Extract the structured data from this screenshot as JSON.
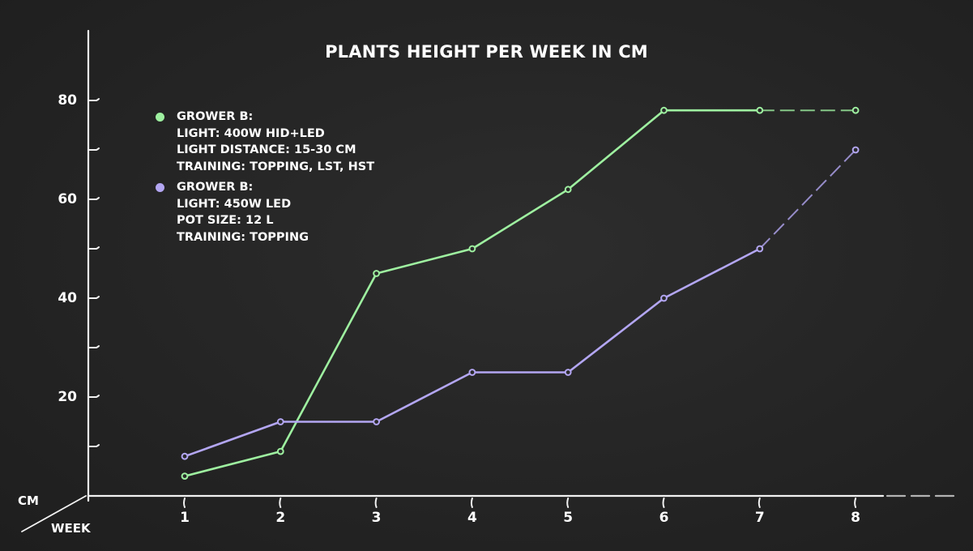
{
  "title": "PLANTS HEIGHT PER WEEK IN CM",
  "axes": {
    "y_name": "CM",
    "x_name": "WEEK",
    "y_ticks": [
      "80",
      "60",
      "40",
      "20"
    ],
    "x_ticks": [
      "1",
      "2",
      "3",
      "4",
      "5",
      "6",
      "7",
      "8"
    ]
  },
  "legend": [
    {
      "color": "#9ef0a0",
      "lines": [
        "GROWER B:",
        "LIGHT: 400W HID+LED",
        "LIGHT DISTANCE: 15-30 CM",
        "TRAINING: TOPPING, LST, HST"
      ]
    },
    {
      "color": "#b3a6f2",
      "lines": [
        "GROWER B:",
        "LIGHT: 450W LED",
        "POT SIZE: 12 L",
        "TRAINING: TOPPING"
      ]
    }
  ],
  "chart_data": {
    "type": "line",
    "title": "PLANTS HEIGHT PER WEEK IN CM",
    "xlabel": "WEEK",
    "ylabel": "CM",
    "x": [
      1,
      2,
      3,
      4,
      5,
      6,
      7,
      8
    ],
    "ylim": [
      0,
      80
    ],
    "y_ticks": [
      20,
      40,
      60,
      80
    ],
    "y_minor_ticks": [
      10,
      30,
      50,
      70
    ],
    "grid": false,
    "legend_position": "upper left",
    "series": [
      {
        "name": "GROWER B: LIGHT: 400W HID+LED, LIGHT DISTANCE: 15-30 CM, TRAINING: TOPPING, LST, HST",
        "color": "#9ef0a0",
        "values": [
          4,
          9,
          45,
          50,
          62,
          78,
          78,
          78
        ],
        "dashed_from_index": 6
      },
      {
        "name": "GROWER B: LIGHT: 450W LED, POT SIZE: 12 L, TRAINING: TOPPING",
        "color": "#b3a6f2",
        "values": [
          8,
          15,
          15,
          25,
          25,
          40,
          50,
          70
        ],
        "dashed_from_index": 6
      }
    ]
  }
}
